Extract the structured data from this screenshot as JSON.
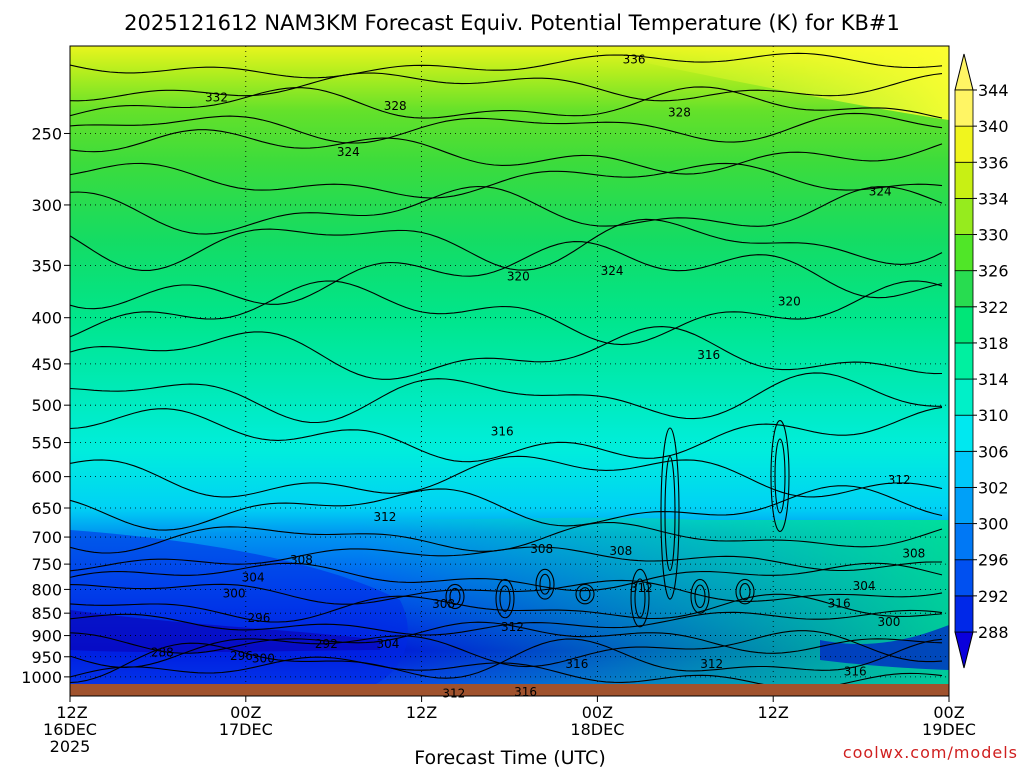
{
  "title": "2025121612 NAM3KM Forecast Equiv. Potential Temperature (K) for KB#1",
  "credit": "coolwx.com/models",
  "colors": {
    "ground": "#a0522d",
    "contour": "#000000",
    "credit": "#d02020"
  },
  "chart_data": {
    "type": "heatmap",
    "title": "2025121612 NAM3KM Forecast Equiv. Potential Temperature (K) for KB#1",
    "xlabel": "Forecast Time (UTC)",
    "ylabel": "",
    "y_scale": "log-pressure",
    "y_reversed": true,
    "ylim": [
      1050,
      200
    ],
    "y_ticks": [
      250,
      300,
      350,
      400,
      450,
      500,
      550,
      600,
      650,
      700,
      750,
      800,
      850,
      900,
      950,
      1000
    ],
    "x_ticks": [
      {
        "hour": 0,
        "lines": [
          "12Z",
          "16DEC",
          "2025"
        ]
      },
      {
        "hour": 12,
        "lines": [
          "00Z",
          "17DEC"
        ]
      },
      {
        "hour": 24,
        "lines": [
          "12Z"
        ]
      },
      {
        "hour": 36,
        "lines": [
          "00Z",
          "18DEC"
        ]
      },
      {
        "hour": 48,
        "lines": [
          "12Z"
        ]
      },
      {
        "hour": 60,
        "lines": [
          "00Z",
          "19DEC"
        ]
      }
    ],
    "xlim_hours": [
      0,
      60
    ],
    "grid": true,
    "colorbar": {
      "units": "K",
      "labels": [
        288,
        292,
        296,
        300,
        302,
        306,
        310,
        314,
        318,
        322,
        326,
        330,
        334,
        336,
        340,
        344
      ],
      "colors": [
        "#0a00dc",
        "#0028e8",
        "#0050f0",
        "#0078f5",
        "#00a0f8",
        "#00c8fa",
        "#00e8f0",
        "#00f0c8",
        "#00f0a0",
        "#00e678",
        "#28dc50",
        "#50e628",
        "#96eb1e",
        "#c8f014",
        "#f0f51e",
        "#fff564"
      ]
    },
    "contour_labels": [
      {
        "text": "336",
        "hour": 38.5,
        "p": 207
      },
      {
        "text": "332",
        "hour": 10.0,
        "p": 228
      },
      {
        "text": "328",
        "hour": 22.2,
        "p": 233
      },
      {
        "text": "328",
        "hour": 41.6,
        "p": 237
      },
      {
        "text": "324",
        "hour": 19.0,
        "p": 262
      },
      {
        "text": "324",
        "hour": 55.3,
        "p": 290
      },
      {
        "text": "324",
        "hour": 37.0,
        "p": 355
      },
      {
        "text": "320",
        "hour": 30.6,
        "p": 360
      },
      {
        "text": "320",
        "hour": 49.1,
        "p": 384
      },
      {
        "text": "316",
        "hour": 43.6,
        "p": 440
      },
      {
        "text": "316",
        "hour": 29.5,
        "p": 535
      },
      {
        "text": "312",
        "hour": 56.6,
        "p": 605
      },
      {
        "text": "312",
        "hour": 21.5,
        "p": 665
      },
      {
        "text": "308",
        "hour": 15.8,
        "p": 742
      },
      {
        "text": "308",
        "hour": 32.2,
        "p": 722
      },
      {
        "text": "308",
        "hour": 37.6,
        "p": 725
      },
      {
        "text": "308",
        "hour": 57.6,
        "p": 730
      },
      {
        "text": "304",
        "hour": 12.5,
        "p": 776
      },
      {
        "text": "304",
        "hour": 54.2,
        "p": 793
      },
      {
        "text": "300",
        "hour": 11.2,
        "p": 808
      },
      {
        "text": "300",
        "hour": 55.9,
        "p": 869
      },
      {
        "text": "296",
        "hour": 12.9,
        "p": 861
      },
      {
        "text": "296",
        "hour": 11.7,
        "p": 948
      },
      {
        "text": "300",
        "hour": 13.2,
        "p": 954
      },
      {
        "text": "292",
        "hour": 17.5,
        "p": 920
      },
      {
        "text": "304",
        "hour": 21.7,
        "p": 919
      },
      {
        "text": "288",
        "hour": 6.3,
        "p": 940
      },
      {
        "text": "308",
        "hour": 25.5,
        "p": 830
      },
      {
        "text": "312",
        "hour": 30.2,
        "p": 880
      },
      {
        "text": "312",
        "hour": 39.0,
        "p": 797
      },
      {
        "text": "316",
        "hour": 52.5,
        "p": 829
      },
      {
        "text": "316",
        "hour": 34.6,
        "p": 968
      },
      {
        "text": "312",
        "hour": 43.8,
        "p": 968
      },
      {
        "text": "316",
        "hour": 53.6,
        "p": 987
      },
      {
        "text": "312",
        "hour": 26.2,
        "p": 1043
      },
      {
        "text": "316",
        "hour": 31.1,
        "p": 1040
      }
    ]
  }
}
